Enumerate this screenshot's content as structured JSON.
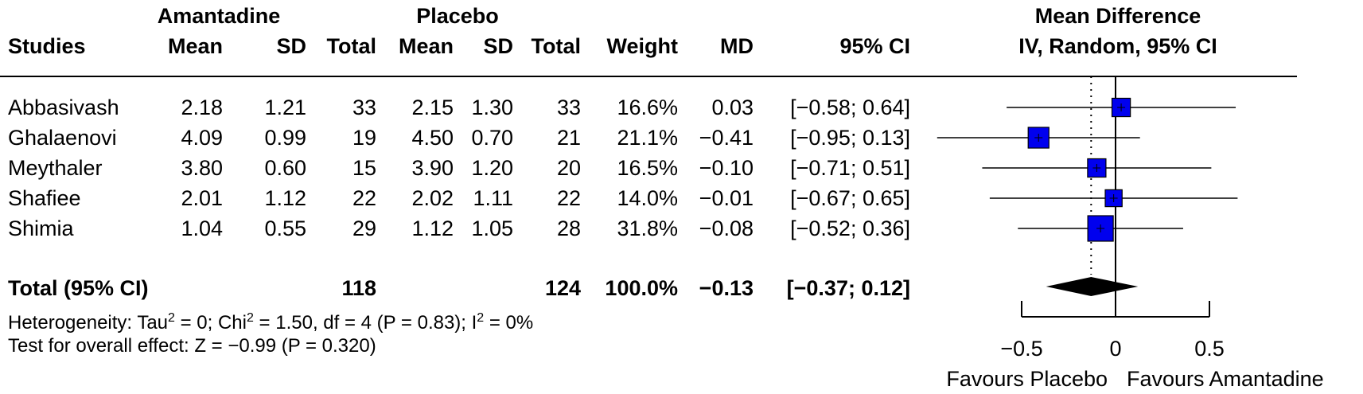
{
  "header": {
    "group1": "Amantadine",
    "group2": "Placebo",
    "studies": "Studies",
    "mean1": "Mean",
    "sd1": "SD",
    "total1": "Total",
    "mean2": "Mean",
    "sd2": "SD",
    "total2": "Total",
    "weight": "Weight",
    "md": "MD",
    "ci": "95% CI",
    "plot_title1": "Mean Difference",
    "plot_title2": "IV, Random, 95% CI"
  },
  "studies": [
    {
      "name": "Abbasivash",
      "mean1": "2.18",
      "sd1": "1.21",
      "n1": "33",
      "mean2": "2.15",
      "sd2": "1.30",
      "n2": "33",
      "weight": "16.6%",
      "md": "0.03",
      "ci": "[−0.58; 0.64]"
    },
    {
      "name": "Ghalaenovi",
      "mean1": "4.09",
      "sd1": "0.99",
      "n1": "19",
      "mean2": "4.50",
      "sd2": "0.70",
      "n2": "21",
      "weight": "21.1%",
      "md": "−0.41",
      "ci": "[−0.95; 0.13]"
    },
    {
      "name": "Meythaler",
      "mean1": "3.80",
      "sd1": "0.60",
      "n1": "15",
      "mean2": "3.90",
      "sd2": "1.20",
      "n2": "20",
      "weight": "16.5%",
      "md": "−0.10",
      "ci": "[−0.71; 0.51]"
    },
    {
      "name": "Shafiee",
      "mean1": "2.01",
      "sd1": "1.12",
      "n1": "22",
      "mean2": "2.02",
      "sd2": "1.11",
      "n2": "22",
      "weight": "14.0%",
      "md": "−0.01",
      "ci": "[−0.67; 0.65]"
    },
    {
      "name": "Shimia",
      "mean1": "1.04",
      "sd1": "0.55",
      "n1": "29",
      "mean2": "1.12",
      "sd2": "1.05",
      "n2": "28",
      "weight": "31.8%",
      "md": "−0.08",
      "ci": "[−0.52; 0.36]"
    }
  ],
  "total": {
    "label": "Total (95% CI)",
    "n1": "118",
    "n2": "124",
    "weight": "100.0%",
    "md": "−0.13",
    "ci": "[−0.37; 0.12]"
  },
  "heterogeneity": {
    "p1": "Heterogeneity: Tau",
    "s1": "2",
    "p2": " = 0; Chi",
    "s2": "2",
    "p3": " = 1.50, df = 4 (P = 0.83); I",
    "s3": "2",
    "p4": " = 0%"
  },
  "overall_effect": "Test for overall effect: Z = −0.99 (P = 0.320)",
  "chart_data": {
    "type": "forest",
    "x_ticks": [
      -0.5,
      0,
      0.5
    ],
    "x_tick_labels": [
      "−0.5",
      "0",
      "0.5"
    ],
    "xlim": [
      -0.5,
      0.5
    ],
    "favours_left": "Favours Placebo",
    "favours_right": "Favours Amantadine",
    "null_value": 0,
    "pooled_reference": -0.13,
    "studies": [
      {
        "name": "Abbasivash",
        "md": 0.03,
        "lower": -0.58,
        "upper": 0.64,
        "weight": 16.6
      },
      {
        "name": "Ghalaenovi",
        "md": -0.41,
        "lower": -0.95,
        "upper": 0.13,
        "weight": 21.1
      },
      {
        "name": "Meythaler",
        "md": -0.1,
        "lower": -0.71,
        "upper": 0.51,
        "weight": 16.5
      },
      {
        "name": "Shafiee",
        "md": -0.01,
        "lower": -0.67,
        "upper": 0.65,
        "weight": 14.0
      },
      {
        "name": "Shimia",
        "md": -0.08,
        "lower": -0.52,
        "upper": 0.36,
        "weight": 31.8
      }
    ],
    "pooled": {
      "md": -0.13,
      "lower": -0.37,
      "upper": 0.12
    },
    "colors": {
      "box": "#0000ee",
      "diamond": "#000000",
      "line": "#000000"
    }
  }
}
